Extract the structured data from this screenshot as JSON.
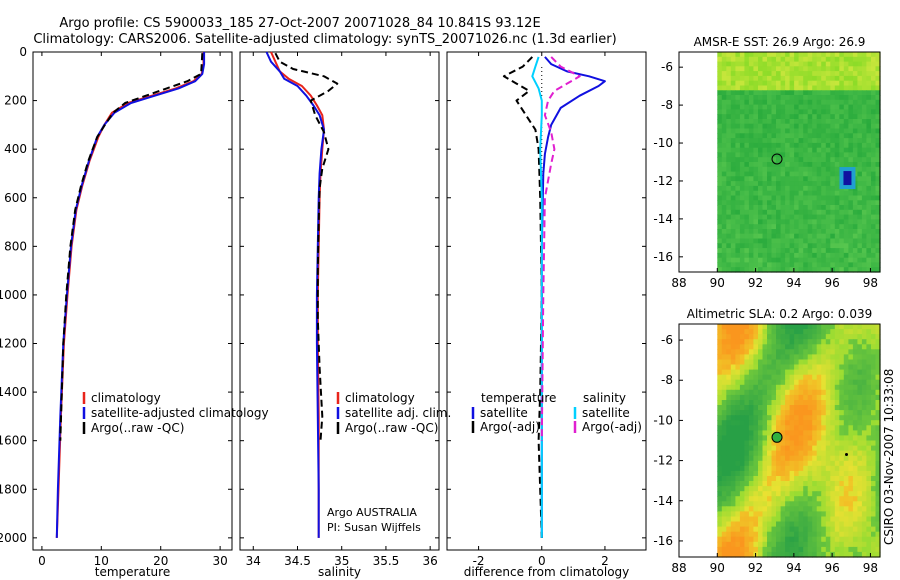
{
  "title_line1": "Argo profile: CS 5900033_185 27-Oct-2007 20071028_84 10.841S 93.12E",
  "title_line2": "Climatology: CARS2006. Satellite-adjusted climatology: synTS_20071026.nc (1.3d earlier)",
  "side_text": "CSIRO 03-Nov-2007 10:33:08",
  "colors": {
    "climatology": "#e8241b",
    "satellite": "#1010e0",
    "argo": "#000000",
    "sat_diff": "#00d0ff",
    "argo_adj": "#e020d0"
  },
  "chart_data": [
    {
      "type": "line",
      "id": "temperature",
      "xlabel": "temperature",
      "ylabel": "",
      "xlim": [
        -1.5,
        32
      ],
      "ylim": [
        2050,
        0
      ],
      "xticks": [
        0,
        10,
        20,
        30
      ],
      "yticks": [
        0,
        200,
        400,
        600,
        800,
        1000,
        1200,
        1400,
        1600,
        1800,
        2000
      ],
      "legend": [
        "climatology",
        "satellite-adjusted climatology",
        "Argo(..raw -QC)"
      ],
      "series": [
        {
          "name": "climatology",
          "color": "#e8241b",
          "style": "solid",
          "x": [
            27.2,
            27.2,
            26.9,
            25.5,
            22.5,
            18.5,
            14.5,
            11.8,
            10.5,
            9.5,
            8.0,
            6.8,
            5.8,
            5.0,
            4.3,
            3.7,
            3.2,
            2.8,
            2.5
          ],
          "depth": [
            0,
            50,
            90,
            120,
            150,
            180,
            210,
            250,
            300,
            350,
            450,
            550,
            650,
            800,
            1000,
            1200,
            1500,
            1800,
            2000
          ]
        },
        {
          "name": "satellite-adjusted climatology",
          "color": "#1010e0",
          "style": "solid",
          "x": [
            27.3,
            27.3,
            27.0,
            25.8,
            23.0,
            19.0,
            15.0,
            12.2,
            10.5,
            9.3,
            7.9,
            6.7,
            5.7,
            4.9,
            4.2,
            3.6,
            3.1,
            2.7,
            2.5
          ],
          "depth": [
            0,
            50,
            90,
            120,
            150,
            180,
            210,
            250,
            300,
            350,
            450,
            550,
            650,
            800,
            1000,
            1200,
            1500,
            1800,
            2000
          ]
        },
        {
          "name": "Argo(..raw -QC)",
          "color": "#000000",
          "style": "dashed",
          "x": [
            27.0,
            26.9,
            26.8,
            24.5,
            21.0,
            17.5,
            14.0,
            12.0,
            10.6,
            9.3,
            7.8,
            6.6,
            5.6,
            4.8,
            4.1,
            3.6,
            3.1
          ],
          "depth": [
            5,
            50,
            90,
            120,
            150,
            180,
            210,
            250,
            300,
            350,
            450,
            550,
            650,
            800,
            1000,
            1200,
            1600
          ]
        }
      ]
    },
    {
      "type": "line",
      "id": "salinity",
      "xlabel": "salinity",
      "ylabel": "",
      "xlim": [
        33.85,
        36.1
      ],
      "ylim": [
        2050,
        0
      ],
      "xticks": [
        34,
        34.5,
        35,
        35.5,
        36
      ],
      "legend": [
        "climatology",
        "satellite adj. clim.",
        "Argo(..raw -QC)"
      ],
      "annotations": [
        "Argo AUSTRALIA",
        "PI: Susan Wijffels"
      ],
      "series": [
        {
          "name": "climatology",
          "color": "#e8241b",
          "style": "solid",
          "x": [
            34.2,
            34.25,
            34.3,
            34.4,
            34.55,
            34.65,
            34.72,
            34.78,
            34.8,
            34.78,
            34.76,
            34.75,
            34.74,
            34.73,
            34.73,
            34.74,
            34.74,
            34.74
          ],
          "depth": [
            0,
            40,
            80,
            110,
            140,
            180,
            220,
            260,
            320,
            400,
            500,
            600,
            800,
            1000,
            1200,
            1500,
            1800,
            2000
          ]
        },
        {
          "name": "satellite adj. clim.",
          "color": "#1010e0",
          "style": "solid",
          "x": [
            34.15,
            34.2,
            34.3,
            34.35,
            34.5,
            34.6,
            34.68,
            34.75,
            34.8,
            34.77,
            34.75,
            34.74,
            34.73,
            34.72,
            34.72,
            34.73,
            34.74,
            34.74
          ],
          "depth": [
            0,
            40,
            80,
            110,
            140,
            180,
            220,
            260,
            320,
            400,
            500,
            600,
            800,
            1000,
            1200,
            1500,
            1800,
            2000
          ]
        },
        {
          "name": "Argo(..raw -QC)",
          "color": "#000000",
          "style": "dashed",
          "x": [
            34.25,
            34.3,
            34.45,
            34.8,
            34.95,
            34.85,
            34.65,
            34.7,
            34.8,
            34.85,
            34.78,
            34.75,
            34.74,
            34.73,
            34.73,
            34.75,
            34.78,
            34.76
          ],
          "depth": [
            5,
            40,
            70,
            100,
            130,
            160,
            200,
            260,
            330,
            400,
            480,
            560,
            700,
            900,
            1100,
            1300,
            1500,
            1600
          ]
        }
      ]
    },
    {
      "type": "line",
      "id": "difference",
      "xlabel": "difference from climatology",
      "ylabel": "",
      "xlim": [
        -3,
        3.3
      ],
      "ylim": [
        2050,
        0
      ],
      "xticks": [
        -2,
        0,
        2
      ],
      "legend_groups": [
        {
          "title": "temperature",
          "items": [
            "satellite",
            "Argo(-adj)"
          ]
        },
        {
          "title": "salinity",
          "items": [
            "satellite",
            "Argo(-adj)"
          ]
        }
      ],
      "series": [
        {
          "name": "temperature satellite",
          "color": "#1010e0",
          "style": "solid",
          "x": [
            0.1,
            0.3,
            0.8,
            1.5,
            2.0,
            1.8,
            1.2,
            0.6,
            0.3,
            0.2,
            0.1,
            0.05,
            0.0,
            0.0,
            0.0
          ],
          "depth": [
            20,
            50,
            80,
            100,
            120,
            140,
            180,
            230,
            300,
            350,
            420,
            500,
            800,
            1200,
            2000
          ]
        },
        {
          "name": "temperature Argo(-adj)",
          "color": "#000000",
          "style": "dashed",
          "x": [
            -0.3,
            -0.6,
            -1.2,
            -0.8,
            -0.4,
            -0.8,
            -0.5,
            -0.2,
            -0.1,
            -0.05,
            0.0,
            -0.05,
            -0.1,
            0.0
          ],
          "depth": [
            20,
            60,
            100,
            130,
            160,
            200,
            260,
            320,
            400,
            600,
            1000,
            1400,
            1600,
            2000
          ]
        },
        {
          "name": "salinity satellite",
          "color": "#00d0ff",
          "style": "solid",
          "x": [
            -0.1,
            -0.2,
            -0.3,
            -0.1,
            0.0,
            0.0,
            -0.05,
            0.0,
            0.0,
            0.0,
            0.0
          ],
          "depth": [
            20,
            60,
            100,
            150,
            200,
            260,
            400,
            600,
            1000,
            1600,
            2000
          ]
        },
        {
          "name": "salinity Argo(-adj)",
          "color": "#e020d0",
          "style": "dashed",
          "x": [
            0.3,
            0.6,
            1.2,
            0.8,
            0.4,
            0.2,
            0.1,
            0.3,
            0.4,
            0.3,
            0.1,
            0.05,
            0.0
          ],
          "depth": [
            20,
            60,
            100,
            130,
            160,
            200,
            260,
            330,
            400,
            460,
            600,
            1000,
            1600
          ]
        }
      ]
    },
    {
      "type": "heatmap",
      "id": "sst-map",
      "title": "AMSR-E SST: 26.9 Argo: 26.9",
      "xlim": [
        88,
        98.5
      ],
      "ylim": [
        -16.8,
        -5.2
      ],
      "xticks": [
        88,
        90,
        92,
        94,
        96,
        98
      ],
      "yticks": [
        -6,
        -8,
        -10,
        -12,
        -14,
        -16
      ],
      "data_xmin": 90,
      "argo_position": {
        "lon": 93.12,
        "lat": -10.841
      },
      "hot_spot": {
        "lon": 96.8,
        "lat": -11.9
      }
    },
    {
      "type": "heatmap",
      "id": "sla-map",
      "title": "Altimetric SLA: 0.2 Argo: 0.039",
      "xlim": [
        88,
        98.5
      ],
      "ylim": [
        -16.8,
        -5.2
      ],
      "xticks": [
        88,
        90,
        92,
        94,
        96,
        98
      ],
      "yticks": [
        -6,
        -8,
        -10,
        -12,
        -14,
        -16
      ],
      "data_xmin": 90,
      "argo_position": {
        "lon": 93.12,
        "lat": -10.841
      }
    }
  ]
}
